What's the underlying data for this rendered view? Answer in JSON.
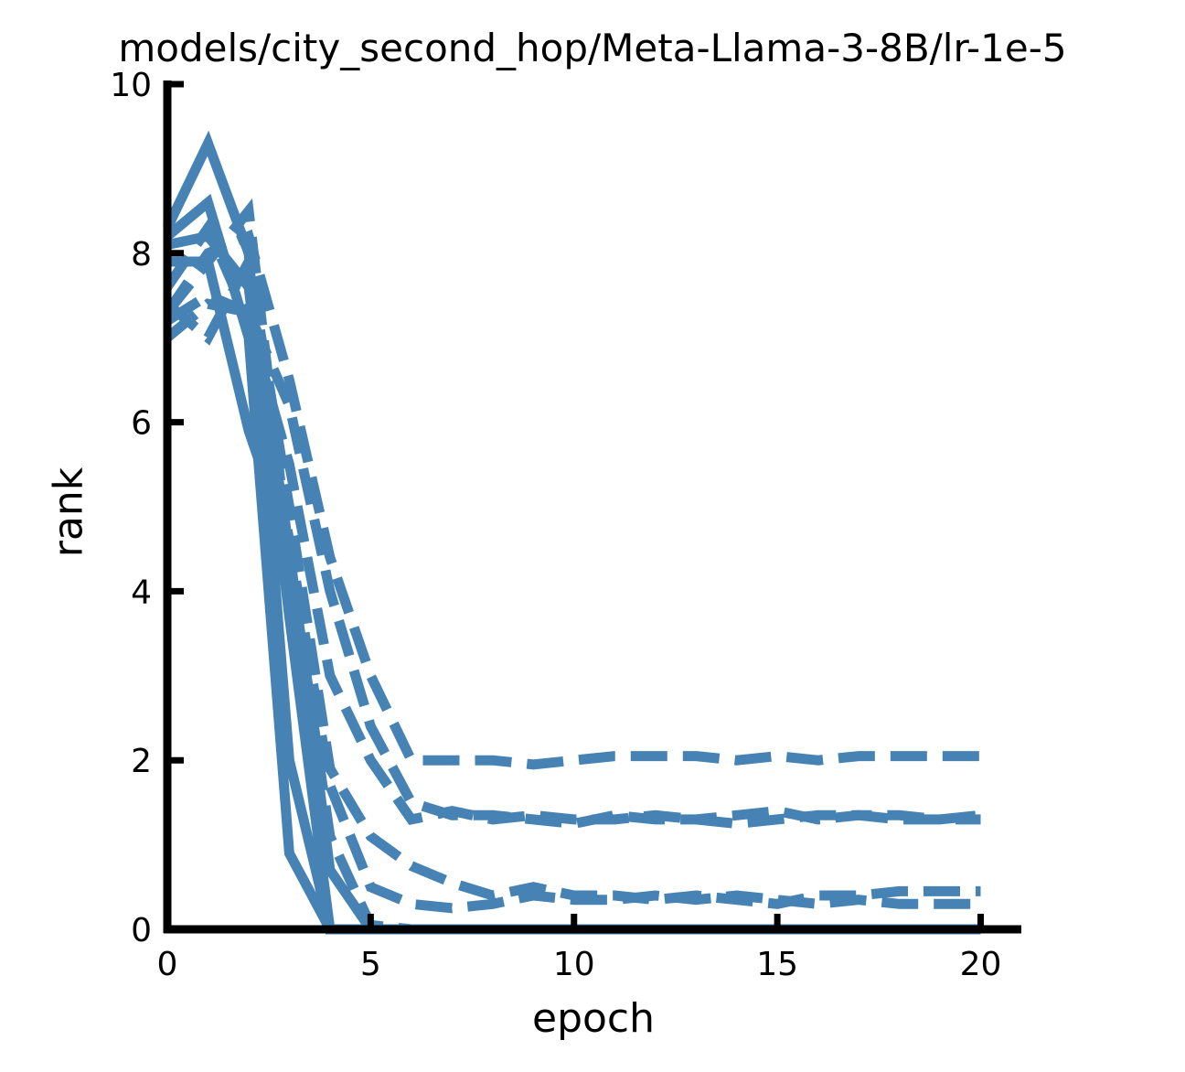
{
  "chart_data": {
    "type": "line",
    "title": "models/city_second_hop/Meta-Llama-3-8B/lr-1e-5",
    "xlabel": "epoch",
    "ylabel": "rank",
    "xlim": [
      0,
      21
    ],
    "ylim": [
      0,
      10
    ],
    "xticks": [
      0,
      5,
      10,
      15,
      20
    ],
    "yticks": [
      0,
      2,
      4,
      6,
      8,
      10
    ],
    "grid": false,
    "legend": "none",
    "color": "#4682b4",
    "x": [
      0,
      1,
      2,
      3,
      4,
      5,
      6,
      7,
      8,
      9,
      10,
      11,
      12,
      13,
      14,
      15,
      16,
      17,
      18,
      19,
      20
    ],
    "series": [
      {
        "style": "solid",
        "values": [
          8.3,
          9.3,
          8.0,
          2.0,
          0,
          0,
          0,
          0,
          0,
          0,
          0,
          0,
          0,
          0,
          0,
          0,
          0,
          0,
          0,
          0,
          0
        ]
      },
      {
        "style": "solid",
        "values": [
          8.2,
          8.6,
          7.0,
          0.9,
          0,
          0,
          0,
          0,
          0,
          0,
          0,
          0,
          0,
          0,
          0,
          0,
          0,
          0,
          0,
          0,
          0
        ]
      },
      {
        "style": "solid",
        "values": [
          8.1,
          8.2,
          7.6,
          3.7,
          0,
          0,
          0,
          0,
          0,
          0,
          0,
          0,
          0,
          0,
          0,
          0,
          0,
          0,
          0,
          0,
          0
        ]
      },
      {
        "style": "solid",
        "values": [
          7.9,
          7.9,
          5.9,
          4.5,
          0.7,
          0,
          0,
          0,
          0,
          0,
          0,
          0,
          0,
          0,
          0,
          0,
          0,
          0,
          0,
          0,
          0
        ]
      },
      {
        "style": "dashed",
        "values": [
          7.3,
          7.9,
          8.5,
          4.4,
          1.1,
          0.05,
          0,
          0,
          0,
          0,
          0,
          0,
          0,
          0,
          0,
          0,
          0,
          0,
          0,
          0,
          0
        ]
      },
      {
        "style": "dashed",
        "values": [
          7.2,
          7.5,
          7.3,
          4.6,
          1.7,
          0.5,
          0.3,
          0.25,
          0.3,
          0.4,
          0.35,
          0.35,
          0.4,
          0.35,
          0.4,
          0.35,
          0.3,
          0.35,
          0.3,
          0.3,
          0.3
        ]
      },
      {
        "style": "dashed",
        "values": [
          7.4,
          7.0,
          7.9,
          5.0,
          1.9,
          1.1,
          0.75,
          0.55,
          0.4,
          0.5,
          0.4,
          0.4,
          0.35,
          0.4,
          0.35,
          0.3,
          0.4,
          0.4,
          0.45,
          0.45,
          0.45
        ]
      },
      {
        "style": "dashed",
        "values": [
          7.6,
          8.3,
          7.2,
          5.5,
          3.0,
          2.0,
          1.3,
          1.4,
          1.3,
          1.35,
          1.3,
          1.3,
          1.35,
          1.3,
          1.25,
          1.3,
          1.35,
          1.35,
          1.3,
          1.3,
          1.3
        ]
      },
      {
        "style": "dashed",
        "values": [
          7.0,
          7.4,
          7.3,
          6.2,
          4.0,
          2.4,
          1.5,
          1.35,
          1.35,
          1.3,
          1.25,
          1.35,
          1.3,
          1.3,
          1.35,
          1.4,
          1.3,
          1.35,
          1.35,
          1.3,
          1.35
        ]
      },
      {
        "style": "dashed",
        "values": [
          7.3,
          8.0,
          8.2,
          6.5,
          4.4,
          3.0,
          2.0,
          2.0,
          2.0,
          1.95,
          2.0,
          2.05,
          2.05,
          2.05,
          2.0,
          2.05,
          2.0,
          2.05,
          2.05,
          2.05,
          2.05
        ]
      }
    ]
  }
}
